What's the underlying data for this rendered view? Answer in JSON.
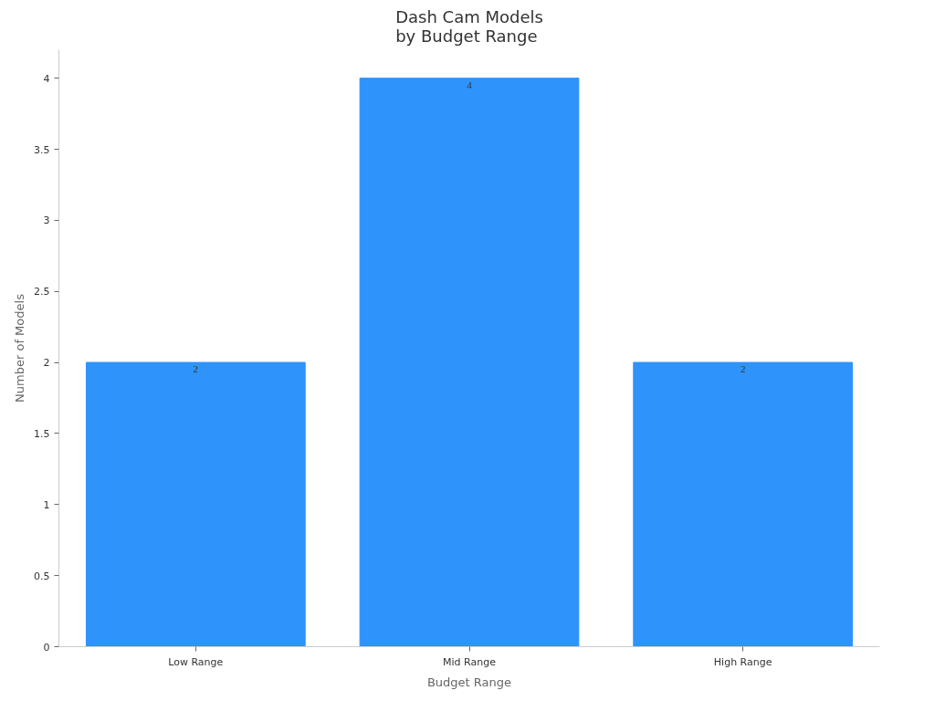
{
  "chart_data": {
    "type": "bar",
    "title": "Dash Cam Models\nby Budget Range",
    "xlabel": "Budget Range",
    "ylabel": "Number of Models",
    "categories": [
      "Low Range",
      "Mid Range",
      "High Range"
    ],
    "values": [
      2,
      4,
      2
    ],
    "color": "#2e93fa",
    "ylim": [
      0,
      4.2
    ],
    "yticks": [
      0,
      0.5,
      1,
      1.5,
      2,
      2.5,
      3,
      3.5,
      4
    ],
    "grid": false,
    "data_labels": true
  }
}
